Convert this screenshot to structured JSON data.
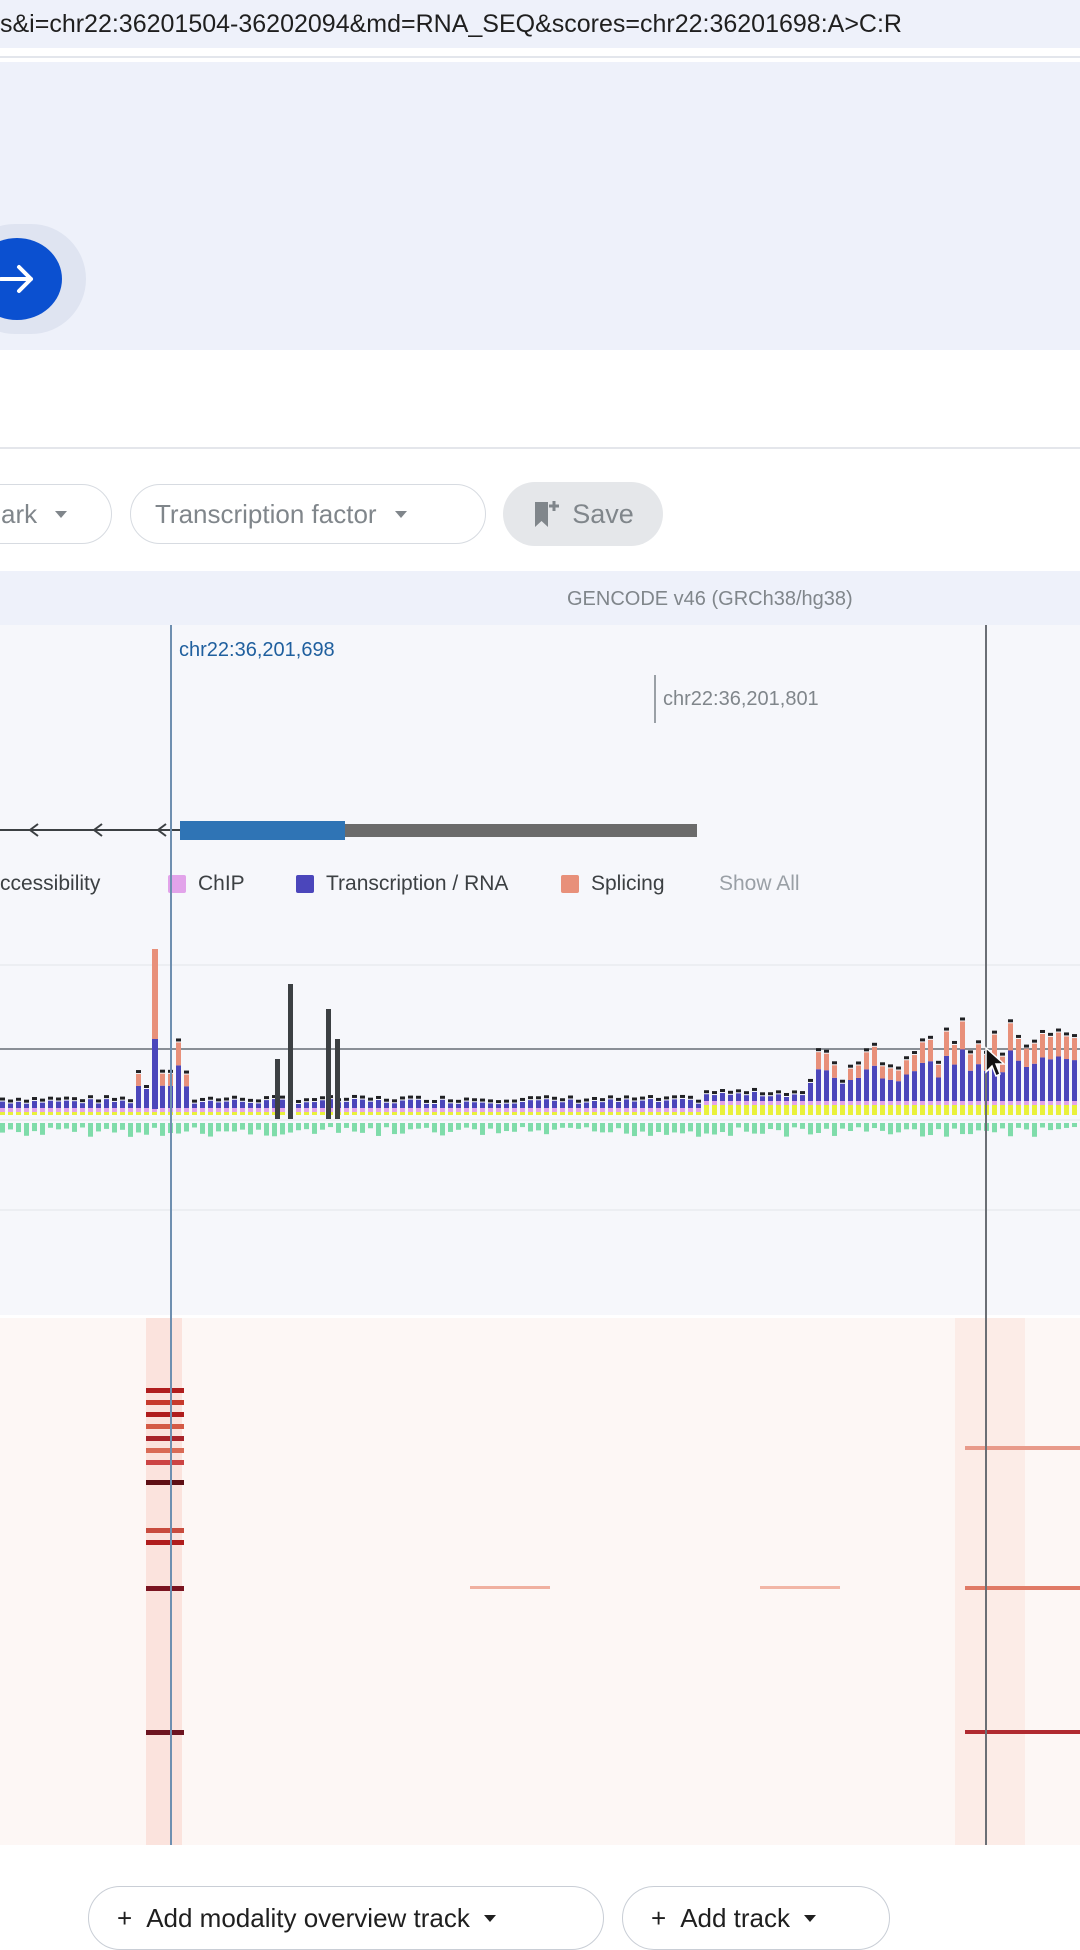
{
  "browser": {
    "url": "s&i=chr22:36201504-36202094&md=RNA_SEQ&scores=chr22:36201698:A>C:R"
  },
  "filters": {
    "histone_mark_partial": "ark",
    "transcription_factor": "Transcription factor",
    "save_label": "Save"
  },
  "annotation": {
    "gencode_label": "GENCODE v46 (GRCh38/hg38)"
  },
  "positions": {
    "variant_coord": "chr22:36,201,698",
    "hover_coord": "chr22:36,201,801"
  },
  "legend": {
    "accessibility_partial": "ccessibility",
    "chip": "ChIP",
    "transcription_rna": "Transcription / RNA",
    "splicing": "Splicing",
    "show_all": "Show All"
  },
  "colors": {
    "chip": "#e2a3ea",
    "transcription_rna": "#4b46bb",
    "splicing": "#e8907a",
    "accessibility": "#e9f13a",
    "neg": "#7fdcaa",
    "cage": "#3c4043",
    "exon": "#2f74b5",
    "utr": "#6b6b6b"
  },
  "track_buttons": {
    "add_modality": "Add modality overview track",
    "add_track": "Add track"
  }
}
